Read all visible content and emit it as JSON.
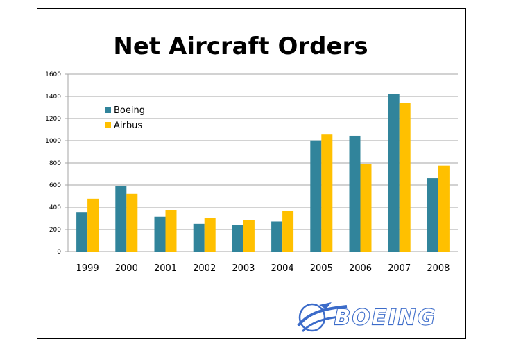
{
  "chart_data": {
    "type": "bar",
    "title": "Net Aircraft Orders",
    "categories": [
      "1999",
      "2000",
      "2001",
      "2002",
      "2003",
      "2004",
      "2005",
      "2006",
      "2007",
      "2008"
    ],
    "series": [
      {
        "name": "Boeing",
        "color": "#31849b",
        "values": [
          355,
          588,
          314,
          251,
          239,
          272,
          1002,
          1044,
          1423,
          662
        ]
      },
      {
        "name": "Airbus",
        "color": "#ffc000",
        "values": [
          476,
          520,
          375,
          300,
          284,
          366,
          1055,
          790,
          1341,
          777
        ]
      }
    ],
    "ylim": [
      0,
      1600
    ],
    "yticks": [
      "0",
      "200",
      "400",
      "600",
      "800",
      "1000",
      "1200",
      "1400",
      "1600"
    ],
    "grid": true,
    "legend": "upper-left"
  },
  "logo": {
    "text": "BOEING",
    "color": "#3b6bc9",
    "icon": "boeing-globe-icon"
  }
}
